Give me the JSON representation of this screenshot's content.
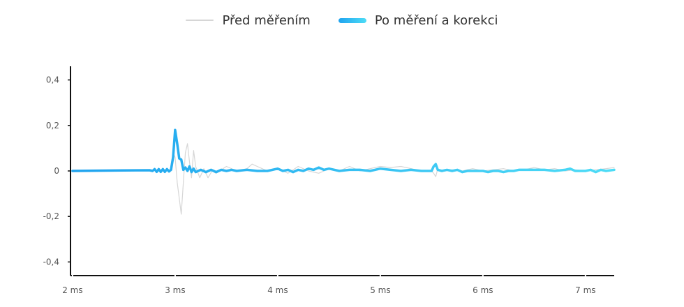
{
  "legend": {
    "before_label": "Před měřením",
    "after_label": "Po měření a korekci"
  },
  "colors": {
    "before": "#d6d6d6",
    "after_start": "#1fa3ef",
    "after_end": "#4ddcf6",
    "axis": "#111111"
  },
  "chart_data": {
    "type": "line",
    "title": "",
    "xlabel": "",
    "ylabel": "",
    "xlim": [
      1.98,
      7.28
    ],
    "ylim": [
      -0.46,
      0.46
    ],
    "x_ticks": [
      2,
      3,
      4,
      5,
      6,
      7
    ],
    "x_tick_labels": [
      "2 ms",
      "3 ms",
      "4 ms",
      "5 ms",
      "6 ms",
      "7 ms"
    ],
    "y_ticks": [
      0.4,
      0.2,
      0,
      -0.2,
      -0.4
    ],
    "y_tick_labels": [
      "0,4",
      "0,2",
      "0",
      "-0,2",
      "-0,4"
    ],
    "grid": false,
    "legend_position": "top-center",
    "series": [
      {
        "name": "Před měřením",
        "x": [
          2.0,
          2.5,
          2.75,
          2.95,
          2.98,
          3.0,
          3.02,
          3.04,
          3.06,
          3.08,
          3.1,
          3.12,
          3.14,
          3.16,
          3.18,
          3.2,
          3.24,
          3.28,
          3.32,
          3.36,
          3.4,
          3.5,
          3.6,
          3.7,
          3.75,
          3.8,
          3.9,
          4.0,
          4.1,
          4.2,
          4.3,
          4.4,
          4.5,
          4.6,
          4.7,
          4.8,
          4.9,
          5.0,
          5.1,
          5.2,
          5.3,
          5.4,
          5.5,
          5.52,
          5.54,
          5.56,
          5.6,
          5.7,
          5.8,
          5.9,
          6.0,
          6.1,
          6.2,
          6.3,
          6.4,
          6.5,
          6.6,
          6.7,
          6.8,
          6.9,
          7.0,
          7.1,
          7.2,
          7.28
        ],
        "y": [
          0.0,
          0.0,
          0.005,
          0.0,
          0.08,
          0.06,
          -0.05,
          -0.12,
          -0.19,
          -0.05,
          0.08,
          0.12,
          0.04,
          -0.03,
          0.09,
          0.02,
          -0.03,
          0.01,
          -0.03,
          0.0,
          -0.01,
          0.02,
          0.0,
          0.01,
          0.03,
          0.02,
          0.0,
          0.01,
          -0.01,
          0.02,
          0.0,
          -0.01,
          0.01,
          0.0,
          0.02,
          0.0,
          0.01,
          0.02,
          0.015,
          0.02,
          0.01,
          0.0,
          0.0,
          -0.01,
          -0.025,
          0.01,
          0.0,
          0.005,
          0.0,
          0.01,
          0.0,
          0.005,
          0.01,
          0.0,
          0.005,
          0.015,
          0.005,
          0.01,
          0.0,
          0.005,
          0.0,
          0.005,
          0.01,
          0.015
        ]
      },
      {
        "name": "Po měření a korekci",
        "x": [
          2.0,
          2.5,
          2.75,
          2.78,
          2.8,
          2.82,
          2.84,
          2.86,
          2.88,
          2.9,
          2.92,
          2.94,
          2.96,
          2.98,
          3.0,
          3.02,
          3.04,
          3.06,
          3.08,
          3.1,
          3.12,
          3.14,
          3.16,
          3.18,
          3.2,
          3.25,
          3.3,
          3.35,
          3.4,
          3.45,
          3.5,
          3.55,
          3.6,
          3.7,
          3.8,
          3.9,
          4.0,
          4.05,
          4.1,
          4.15,
          4.2,
          4.25,
          4.3,
          4.35,
          4.4,
          4.45,
          4.5,
          4.6,
          4.7,
          4.8,
          4.9,
          5.0,
          5.1,
          5.2,
          5.3,
          5.4,
          5.5,
          5.52,
          5.54,
          5.56,
          5.6,
          5.65,
          5.7,
          5.75,
          5.8,
          5.85,
          5.9,
          6.0,
          6.05,
          6.1,
          6.15,
          6.2,
          6.25,
          6.3,
          6.35,
          6.4,
          6.5,
          6.6,
          6.7,
          6.8,
          6.85,
          6.9,
          7.0,
          7.05,
          7.1,
          7.15,
          7.2,
          7.28
        ],
        "y": [
          0.0,
          0.002,
          0.003,
          0.0,
          0.008,
          -0.004,
          0.008,
          -0.004,
          0.008,
          -0.004,
          0.008,
          -0.002,
          0.005,
          0.06,
          0.18,
          0.12,
          0.055,
          0.05,
          0.005,
          0.015,
          0.0,
          0.02,
          -0.005,
          0.01,
          -0.005,
          0.005,
          -0.005,
          0.005,
          -0.005,
          0.005,
          0.0,
          0.005,
          0.0,
          0.005,
          0.0,
          0.0,
          0.01,
          0.0,
          0.005,
          -0.005,
          0.005,
          0.0,
          0.01,
          0.005,
          0.015,
          0.005,
          0.01,
          0.0,
          0.005,
          0.005,
          0.0,
          0.01,
          0.005,
          0.0,
          0.005,
          0.0,
          0.0,
          0.02,
          0.03,
          0.005,
          0.0,
          0.005,
          0.0,
          0.005,
          -0.005,
          0.0,
          0.0,
          0.0,
          -0.005,
          0.0,
          0.0,
          -0.005,
          0.0,
          0.0,
          0.005,
          0.005,
          0.005,
          0.005,
          0.0,
          0.005,
          0.01,
          0.0,
          0.0,
          0.005,
          -0.005,
          0.005,
          0.0,
          0.005
        ]
      }
    ]
  }
}
